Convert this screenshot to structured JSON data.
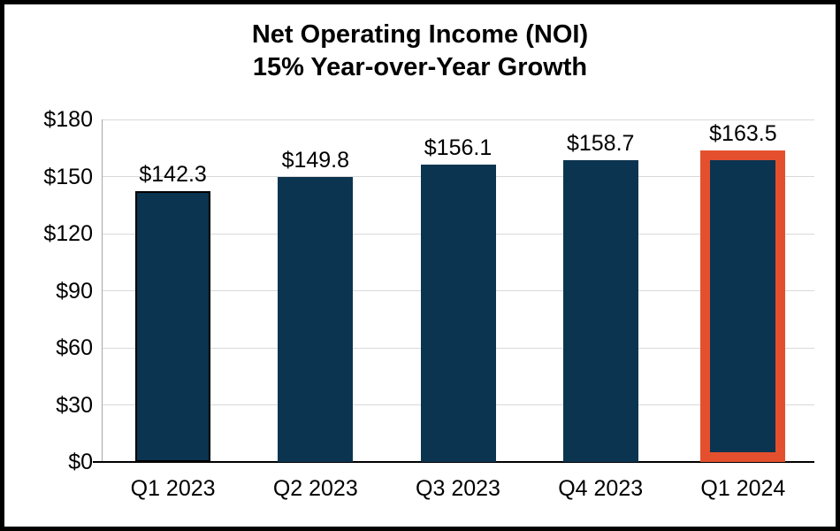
{
  "chart_data": {
    "type": "bar",
    "title": "Net Operating Income (NOI)",
    "subtitle": "15% Year-over-Year Growth",
    "categories": [
      "Q1 2023",
      "Q2 2023",
      "Q3 2023",
      "Q4 2023",
      "Q1 2024"
    ],
    "values": [
      142.3,
      149.8,
      156.1,
      158.7,
      163.5
    ],
    "bar_labels": [
      "$142.3",
      "$149.8",
      "$156.1",
      "$158.7",
      "$163.5"
    ],
    "xlabel": "",
    "ylabel": "",
    "ylim": [
      0,
      180
    ],
    "yticks": [
      0,
      30,
      60,
      90,
      120,
      150,
      180
    ],
    "ytick_labels": [
      "$0",
      "$30",
      "$60",
      "$90",
      "$120",
      "$150",
      "$180"
    ],
    "grid": "horizontal",
    "legend": "none",
    "highlight_index": 4,
    "outlined_index": 0,
    "colors": {
      "bar_fill": "#0b3450",
      "highlight_border": "#e4502e",
      "outline": "#000000",
      "gridline": "#d9d9d9",
      "axis_line": "#a6a6a6",
      "baseline": "#000000",
      "text": "#000000",
      "background": "#ffffff",
      "frame_border": "#000000"
    }
  }
}
